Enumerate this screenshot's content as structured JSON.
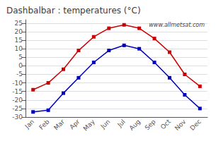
{
  "chart_data": {
    "type": "line",
    "title": "Dashbalbar : temperatures (°C)",
    "categories": [
      "Jan",
      "Feb",
      "Mar",
      "Apr",
      "May",
      "Jun",
      "Jul",
      "Aug",
      "Sep",
      "Oct",
      "Nov",
      "Dec"
    ],
    "series": [
      {
        "color": "#cc0000",
        "marker": "square",
        "line_style": "solid",
        "values": [
          -14,
          -10,
          -2,
          9,
          17,
          22,
          24,
          22,
          16,
          8,
          -5,
          -12
        ]
      },
      {
        "color": "#0000bb",
        "marker": "square",
        "line_style": "solid",
        "values": [
          -27,
          -26,
          -16,
          -7,
          2,
          9,
          12,
          10,
          2,
          -7,
          -17,
          -25
        ]
      }
    ],
    "ylim": [
      -30,
      27
    ],
    "yticks": [
      -30,
      -25,
      -20,
      -15,
      -10,
      -5,
      0,
      5,
      10,
      15,
      20,
      25
    ],
    "grid": true,
    "annotations": [
      "www.allmetsat.com"
    ]
  }
}
